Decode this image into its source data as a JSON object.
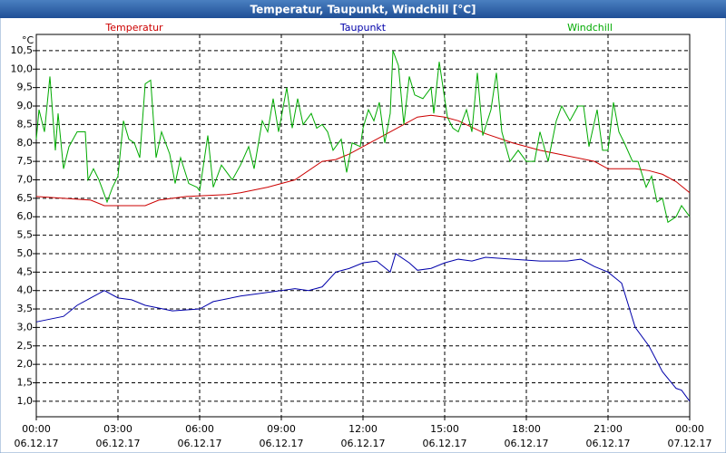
{
  "chart_data": {
    "type": "line",
    "title": "Temperatur, Taupunkt, Windchill [°C]",
    "y_label": "°C",
    "xlim": [
      0,
      24
    ],
    "ylim": [
      0.58,
      10.94
    ],
    "grid": true,
    "xticks": [
      {
        "value": 0,
        "label": "00:00",
        "date": "06.12.17"
      },
      {
        "value": 3,
        "label": "03:00",
        "date": "06.12.17"
      },
      {
        "value": 6,
        "label": "06:00",
        "date": "06.12.17"
      },
      {
        "value": 9,
        "label": "09:00",
        "date": "06.12.17"
      },
      {
        "value": 12,
        "label": "12:00",
        "date": "06.12.17"
      },
      {
        "value": 15,
        "label": "15:00",
        "date": "06.12.17"
      },
      {
        "value": 18,
        "label": "18:00",
        "date": "06.12.17"
      },
      {
        "value": 21,
        "label": "21:00",
        "date": "06.12.17"
      },
      {
        "value": 24,
        "label": "00:00",
        "date": "07.12.17"
      }
    ],
    "yticks": [
      {
        "value": 1,
        "label": "1,0"
      },
      {
        "value": 1.5,
        "label": "1,5"
      },
      {
        "value": 2,
        "label": "2,0"
      },
      {
        "value": 2.5,
        "label": "2,5"
      },
      {
        "value": 3,
        "label": "3,0"
      },
      {
        "value": 3.5,
        "label": "3,5"
      },
      {
        "value": 4,
        "label": "4,0"
      },
      {
        "value": 4.5,
        "label": "4,5"
      },
      {
        "value": 5,
        "label": "5,0"
      },
      {
        "value": 5.5,
        "label": "5,5"
      },
      {
        "value": 6,
        "label": "6,0"
      },
      {
        "value": 6.5,
        "label": "6,5"
      },
      {
        "value": 7,
        "label": "7,0"
      },
      {
        "value": 7.5,
        "label": "7,5"
      },
      {
        "value": 8,
        "label": "8,0"
      },
      {
        "value": 8.5,
        "label": "8,5"
      },
      {
        "value": 9,
        "label": "9,0"
      },
      {
        "value": 9.5,
        "label": "9,5"
      },
      {
        "value": 10,
        "label": "10,0"
      },
      {
        "value": 10.5,
        "label": "10,5"
      }
    ],
    "series": [
      {
        "name": "Temperatur",
        "color": "#cc0000",
        "x": [
          0,
          1,
          2,
          2.5,
          3,
          4,
          4.5,
          5.5,
          7,
          7.5,
          8.5,
          9.5,
          10.5,
          11,
          11.5,
          12,
          13,
          14,
          14.5,
          15,
          15.5,
          16.5,
          17.5,
          18.5,
          19.5,
          20.5,
          21,
          22,
          22.5,
          23,
          23.5,
          24
        ],
        "values": [
          6.55,
          6.5,
          6.45,
          6.3,
          6.3,
          6.3,
          6.45,
          6.55,
          6.6,
          6.65,
          6.8,
          7.0,
          7.5,
          7.55,
          7.7,
          7.9,
          8.3,
          8.7,
          8.75,
          8.7,
          8.6,
          8.25,
          8.0,
          7.8,
          7.65,
          7.5,
          7.3,
          7.3,
          7.25,
          7.15,
          6.95,
          6.65
        ]
      },
      {
        "name": "Taupunkt",
        "color": "#0000aa",
        "x": [
          0,
          1,
          1.5,
          2,
          2.5,
          3,
          3.5,
          4,
          5,
          6,
          6.5,
          7.5,
          8,
          9,
          9.5,
          10,
          10.5,
          11,
          11.5,
          12,
          12.5,
          13,
          13.2,
          13.7,
          14,
          14.5,
          15,
          15.5,
          16,
          16.5,
          17.5,
          18.5,
          19.5,
          20,
          20.5,
          21,
          21.5,
          22,
          22.5,
          23,
          23.5,
          23.7,
          24
        ],
        "values": [
          3.15,
          3.3,
          3.6,
          3.8,
          4.0,
          3.8,
          3.75,
          3.6,
          3.45,
          3.5,
          3.7,
          3.85,
          3.9,
          4.0,
          4.05,
          4.0,
          4.1,
          4.5,
          4.6,
          4.75,
          4.8,
          4.5,
          5.0,
          4.75,
          4.55,
          4.6,
          4.75,
          4.85,
          4.8,
          4.9,
          4.85,
          4.8,
          4.8,
          4.85,
          4.65,
          4.5,
          4.2,
          3.0,
          2.5,
          1.8,
          1.35,
          1.3,
          1.0
        ]
      },
      {
        "name": "Windchill",
        "color": "#00aa00",
        "x": [
          0,
          0.1,
          0.3,
          0.5,
          0.7,
          0.8,
          1.0,
          1.2,
          1.5,
          1.8,
          1.9,
          2.1,
          2.3,
          2.6,
          2.8,
          3.0,
          3.2,
          3.4,
          3.6,
          3.8,
          4.0,
          4.2,
          4.4,
          4.6,
          4.9,
          5.1,
          5.3,
          5.6,
          5.9,
          6.0,
          6.3,
          6.5,
          6.8,
          7.2,
          7.5,
          7.8,
          8.0,
          8.3,
          8.5,
          8.7,
          8.9,
          9.2,
          9.4,
          9.6,
          9.8,
          10.1,
          10.3,
          10.5,
          10.7,
          10.9,
          11.2,
          11.4,
          11.6,
          11.9,
          12.0,
          12.2,
          12.4,
          12.6,
          12.8,
          13.0,
          13.1,
          13.3,
          13.5,
          13.7,
          13.9,
          14.2,
          14.5,
          14.6,
          14.8,
          15.1,
          15.3,
          15.5,
          15.8,
          16.0,
          16.2,
          16.4,
          16.7,
          16.9,
          17.1,
          17.4,
          17.7,
          18.0,
          18.3,
          18.5,
          18.8,
          19.1,
          19.3,
          19.6,
          19.9,
          20.1,
          20.3,
          20.6,
          20.8,
          21.0,
          21.2,
          21.4,
          21.6,
          21.9,
          22.1,
          22.4,
          22.6,
          22.8,
          23.0,
          23.2,
          23.5,
          23.7,
          24.0
        ],
        "values": [
          8.1,
          8.9,
          8.3,
          9.8,
          7.8,
          8.8,
          7.3,
          7.9,
          8.3,
          8.3,
          7.0,
          7.3,
          7.0,
          6.4,
          6.8,
          7.1,
          8.6,
          8.1,
          8.0,
          7.6,
          9.6,
          9.7,
          7.6,
          8.3,
          7.7,
          6.9,
          7.6,
          6.9,
          6.8,
          6.7,
          8.2,
          6.8,
          7.4,
          7.0,
          7.4,
          7.9,
          7.3,
          8.6,
          8.3,
          9.2,
          8.3,
          9.5,
          8.4,
          9.2,
          8.5,
          8.8,
          8.4,
          8.5,
          8.3,
          7.8,
          8.1,
          7.2,
          8.0,
          7.9,
          8.4,
          8.9,
          8.6,
          9.1,
          8.0,
          8.8,
          10.5,
          10.1,
          8.5,
          9.8,
          9.3,
          9.2,
          9.5,
          8.8,
          10.2,
          8.7,
          8.4,
          8.3,
          8.9,
          8.3,
          9.9,
          8.2,
          8.9,
          9.9,
          8.3,
          7.5,
          7.8,
          7.5,
          7.5,
          8.3,
          7.5,
          8.6,
          9.0,
          8.6,
          9.0,
          9.0,
          7.9,
          8.9,
          7.8,
          7.8,
          9.1,
          8.3,
          8.0,
          7.5,
          7.5,
          6.8,
          7.1,
          6.4,
          6.5,
          5.85,
          6.0,
          6.3,
          6.0
        ]
      }
    ]
  }
}
